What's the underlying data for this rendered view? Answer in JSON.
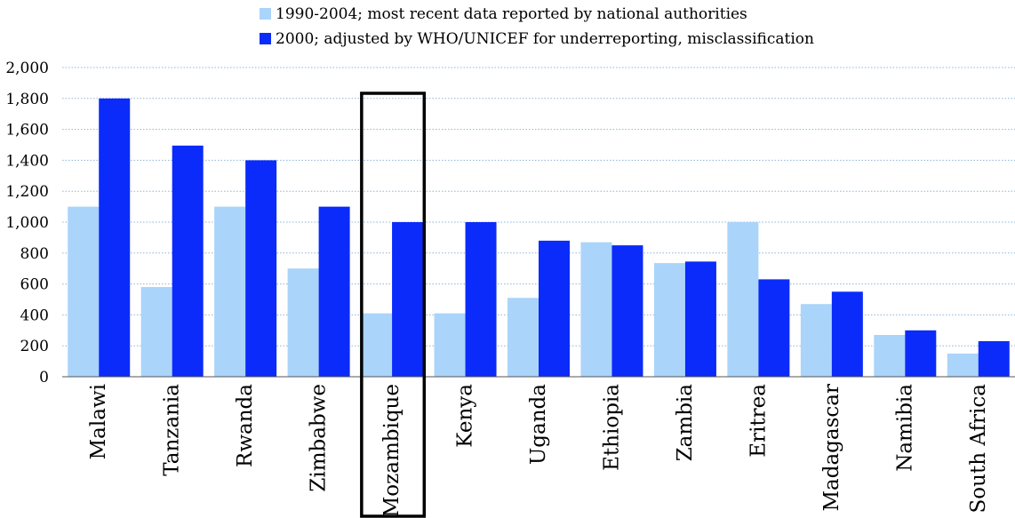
{
  "chart_data": {
    "type": "bar",
    "categories": [
      "Malawi",
      "Tanzania",
      "Rwanda",
      "Zimbabwe",
      "Mozambique",
      "Kenya",
      "Uganda",
      "Ethiopia",
      "Zambia",
      "Eritrea",
      "Madagascar",
      "Namibia",
      "South Africa"
    ],
    "series": [
      {
        "name": "1990-2004; most recent data reported by national authorities",
        "color": "#aad4fa",
        "values": [
          1100,
          580,
          1100,
          700,
          410,
          410,
          510,
          870,
          735,
          1000,
          470,
          270,
          150
        ]
      },
      {
        "name": "2000; adjusted by WHO/UNICEF for underreporting, misclassification",
        "color": "#0a2bfa",
        "values": [
          1800,
          1495,
          1400,
          1100,
          1000,
          1000,
          880,
          850,
          745,
          630,
          550,
          300,
          230
        ]
      }
    ],
    "y_ticks": [
      "0",
      "200",
      "400",
      "600",
      "800",
      "1,000",
      "1,200",
      "1,400",
      "1,600",
      "1,800",
      "2,000"
    ],
    "ylim": [
      0,
      2000
    ],
    "grid": "horizontal-dotted",
    "legend_position": "top",
    "highlighted_category": "Mozambique",
    "title": "",
    "xlabel": "",
    "ylabel": ""
  }
}
